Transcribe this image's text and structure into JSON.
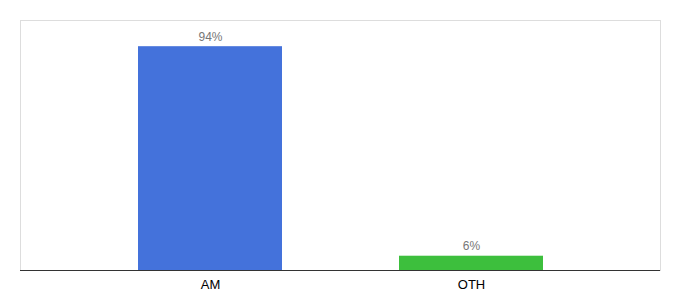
{
  "chart_data": {
    "type": "bar",
    "categories": [
      "AM",
      "OTH"
    ],
    "values": [
      94,
      6
    ],
    "value_labels": [
      "94%",
      "6%"
    ],
    "colors": [
      "#4472db",
      "#3dbf3d"
    ],
    "ylim": [
      0,
      105
    ],
    "data_labels": true,
    "tick_labels": "x",
    "grid": false
  }
}
